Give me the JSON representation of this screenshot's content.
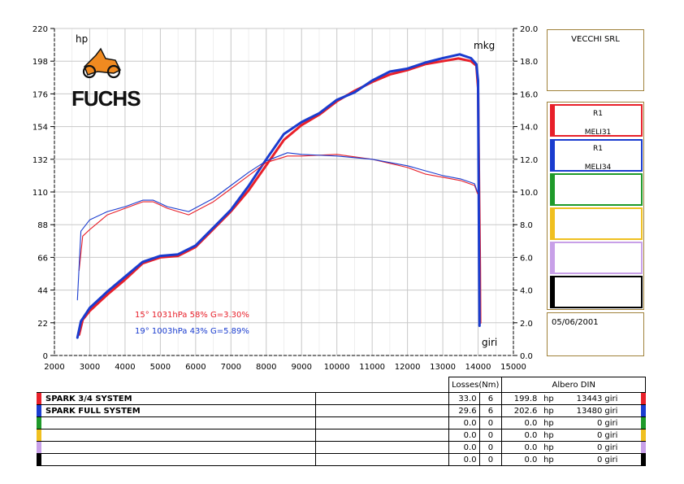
{
  "company": "VECCHI SRL",
  "date": "05/06/2001",
  "logo_text": "FUCHS",
  "axes": {
    "left_unit": "hp",
    "right_unit": "mkg",
    "bottom_unit": "giri"
  },
  "conditions": [
    {
      "text": "15°  1031hPa  58%    G=3.30%",
      "color": "#e8202a"
    },
    {
      "text": "19°  1003hPa  43%    G=5.89%",
      "color": "#1a3ccf"
    }
  ],
  "legend": [
    {
      "line1": "R1",
      "line2": "MELI31",
      "color": "#e8202a"
    },
    {
      "line1": "R1",
      "line2": "MELI34",
      "color": "#1a3ccf"
    },
    {
      "line1": "",
      "line2": "",
      "color": "#1f9a2a"
    },
    {
      "line1": "",
      "line2": "",
      "color": "#f0c020"
    },
    {
      "line1": "",
      "line2": "",
      "color": "#c8a0e8"
    },
    {
      "line1": "",
      "line2": "",
      "color": "#000000"
    }
  ],
  "table": {
    "losses_header": "Losses(Nm)",
    "albero_header": "Albero DIN",
    "rows": [
      {
        "name": "SPARK 3/4 SYSTEM",
        "losses": "33.0",
        "n": "6",
        "hp": "199.8",
        "hp_unit": "hp",
        "rpm": "13443",
        "rpm_unit": "giri",
        "color": "#e8202a"
      },
      {
        "name": "SPARK FULL SYSTEM",
        "losses": "29.6",
        "n": "6",
        "hp": "202.6",
        "hp_unit": "hp",
        "rpm": "13480",
        "rpm_unit": "giri",
        "color": "#1a3ccf"
      },
      {
        "name": "",
        "losses": "0.0",
        "n": "0",
        "hp": "0.0",
        "hp_unit": "hp",
        "rpm": "0",
        "rpm_unit": "giri",
        "color": "#1f9a2a"
      },
      {
        "name": "",
        "losses": "0.0",
        "n": "0",
        "hp": "0.0",
        "hp_unit": "hp",
        "rpm": "0",
        "rpm_unit": "giri",
        "color": "#f0c020"
      },
      {
        "name": "",
        "losses": "0.0",
        "n": "0",
        "hp": "0.0",
        "hp_unit": "hp",
        "rpm": "0",
        "rpm_unit": "giri",
        "color": "#c8a0e8"
      },
      {
        "name": "",
        "losses": "0.0",
        "n": "0",
        "hp": "0.0",
        "hp_unit": "hp",
        "rpm": "0",
        "rpm_unit": "giri",
        "color": "#000000"
      }
    ]
  },
  "chart_data": {
    "type": "line",
    "title": "",
    "xlabel": "giri",
    "ylabel": "hp",
    "y2label": "mkg",
    "xlim": [
      2000,
      15000
    ],
    "ylim": [
      0,
      220
    ],
    "y2lim": [
      0,
      20
    ],
    "x_ticks": [
      2000,
      3000,
      4000,
      5000,
      6000,
      7000,
      8000,
      9000,
      10000,
      11000,
      12000,
      13000,
      14000,
      15000
    ],
    "y_ticks": [
      0,
      22,
      44,
      66,
      88,
      110,
      132,
      154,
      176,
      198,
      220
    ],
    "y2_ticks": [
      "0.0",
      "2.0",
      "4.0",
      "6.0",
      "8.0",
      "10.0",
      "12.0",
      "14.0",
      "16.0",
      "18.0",
      "20.0"
    ],
    "grid": true,
    "series": [
      {
        "name": "SPARK 3/4 SYSTEM",
        "quantity": "power",
        "axis": "hp",
        "color": "#e8202a",
        "x": [
          2700,
          2800,
          3000,
          3500,
          4000,
          4500,
          5000,
          5500,
          6000,
          6500,
          7000,
          7500,
          8000,
          8500,
          9000,
          9500,
          10000,
          10500,
          11000,
          11500,
          12000,
          12500,
          13000,
          13443,
          13800,
          13950,
          14000,
          14050,
          14060
        ],
        "y": [
          14,
          24,
          30,
          41,
          51,
          62,
          66,
          67,
          73,
          85,
          97,
          111,
          128,
          145,
          155,
          162,
          171,
          178,
          184,
          189,
          192,
          196,
          198,
          199.8,
          198,
          195,
          180,
          60,
          22
        ]
      },
      {
        "name": "SPARK FULL SYSTEM",
        "quantity": "power",
        "axis": "hp",
        "color": "#1a3ccf",
        "x": [
          2650,
          2750,
          3000,
          3500,
          4000,
          4500,
          5000,
          5500,
          6000,
          6500,
          7000,
          7500,
          8000,
          8500,
          9000,
          9500,
          10000,
          10500,
          11000,
          11500,
          12000,
          12500,
          13000,
          13480,
          13800,
          13950,
          14000,
          14030,
          14040
        ],
        "y": [
          12,
          23,
          32,
          43,
          53,
          63,
          67,
          68,
          74,
          86,
          98,
          114,
          132,
          149,
          157,
          163,
          172,
          177,
          185,
          191,
          193,
          197,
          200,
          202.6,
          200,
          196,
          185,
          60,
          20
        ]
      },
      {
        "name": "SPARK 3/4 SYSTEM",
        "quantity": "torque",
        "axis": "mkg",
        "color": "#e8202a",
        "x": [
          2700,
          2800,
          3000,
          3500,
          4000,
          4500,
          4800,
          5200,
          5800,
          6500,
          7000,
          7500,
          8000,
          8600,
          9000,
          10000,
          11000,
          12000,
          12500,
          13000,
          13500,
          13900,
          13980
        ],
        "y": [
          5.2,
          7.3,
          7.7,
          8.6,
          9.0,
          9.4,
          9.4,
          9.0,
          8.6,
          9.4,
          10.2,
          11.0,
          11.8,
          12.2,
          12.2,
          12.3,
          12.0,
          11.5,
          11.1,
          10.9,
          10.7,
          10.4,
          9.9
        ]
      },
      {
        "name": "SPARK FULL SYSTEM",
        "quantity": "torque",
        "axis": "mkg",
        "color": "#1a3ccf",
        "x": [
          2650,
          2750,
          3000,
          3500,
          4000,
          4500,
          4800,
          5200,
          5800,
          6500,
          7000,
          7500,
          8000,
          8600,
          9000,
          10000,
          11000,
          12000,
          12500,
          13000,
          13500,
          13900,
          13980
        ],
        "y": [
          3.4,
          7.6,
          8.3,
          8.8,
          9.1,
          9.5,
          9.5,
          9.1,
          8.8,
          9.6,
          10.4,
          11.2,
          11.9,
          12.4,
          12.3,
          12.2,
          12.0,
          11.6,
          11.3,
          11.0,
          10.8,
          10.5,
          10.0
        ]
      }
    ]
  }
}
